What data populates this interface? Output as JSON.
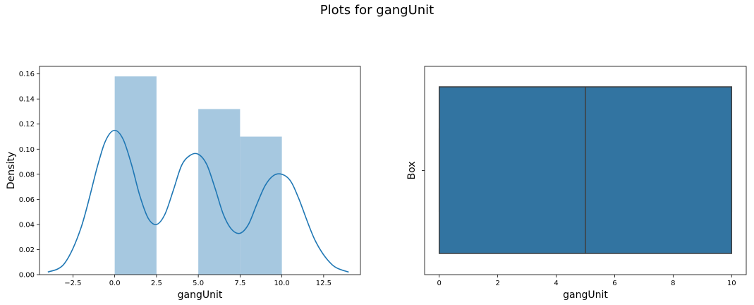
{
  "figure": {
    "title": "Plots for gangUnit"
  },
  "chart_data": [
    {
      "type": "histogram",
      "xlabel": "gangUnit",
      "ylabel": "Density",
      "xlim": [
        -4.5,
        14.7
      ],
      "ylim": [
        0,
        0.166
      ],
      "xticks": [
        -2.5,
        0.0,
        2.5,
        5.0,
        7.5,
        10.0,
        12.5
      ],
      "xtick_labels": [
        "−2.5",
        "0.0",
        "2.5",
        "5.0",
        "7.5",
        "10.0",
        "12.5"
      ],
      "yticks": [
        0,
        0.02,
        0.04,
        0.06,
        0.08,
        0.1,
        0.12,
        0.14,
        0.16
      ],
      "ytick_labels": [
        "0.00",
        "0.02",
        "0.04",
        "0.06",
        "0.08",
        "0.10",
        "0.12",
        "0.14",
        "0.16"
      ],
      "bins": [
        {
          "x0": 0.0,
          "x1": 2.5,
          "density": 0.158
        },
        {
          "x0": 2.5,
          "x1": 5.0,
          "density": 0.0
        },
        {
          "x0": 5.0,
          "x1": 7.5,
          "density": 0.132
        },
        {
          "x0": 7.5,
          "x1": 10.0,
          "density": 0.11
        }
      ],
      "kde": {
        "x": [
          -4.0,
          -3.0,
          -2.0,
          -1.0,
          -0.5,
          0.0,
          0.5,
          1.0,
          1.5,
          2.0,
          2.5,
          3.0,
          3.5,
          4.0,
          4.5,
          5.0,
          5.5,
          6.0,
          6.5,
          7.0,
          7.5,
          8.0,
          8.5,
          9.0,
          9.5,
          10.0,
          10.5,
          11.0,
          12.0,
          13.0,
          14.0
        ],
        "y": [
          0.002,
          0.009,
          0.038,
          0.088,
          0.108,
          0.115,
          0.108,
          0.088,
          0.063,
          0.045,
          0.04,
          0.048,
          0.067,
          0.087,
          0.095,
          0.096,
          0.088,
          0.069,
          0.048,
          0.036,
          0.033,
          0.04,
          0.056,
          0.071,
          0.079,
          0.08,
          0.075,
          0.061,
          0.027,
          0.008,
          0.002
        ]
      },
      "colors": {
        "bars": "#a6c8e0",
        "kde": "#1f77b4"
      }
    },
    {
      "type": "box",
      "xlabel": "gangUnit",
      "ylabel": "Box",
      "xlim": [
        -0.5,
        10.5
      ],
      "xticks": [
        0,
        2,
        4,
        6,
        8,
        10
      ],
      "xtick_labels": [
        "0",
        "2",
        "4",
        "6",
        "8",
        "10"
      ],
      "stats": {
        "min": 0,
        "q1": 0,
        "median": 5,
        "q3": 10,
        "max": 10
      },
      "colors": {
        "box": "#3274a1",
        "line": "#3f3f3f"
      }
    }
  ]
}
